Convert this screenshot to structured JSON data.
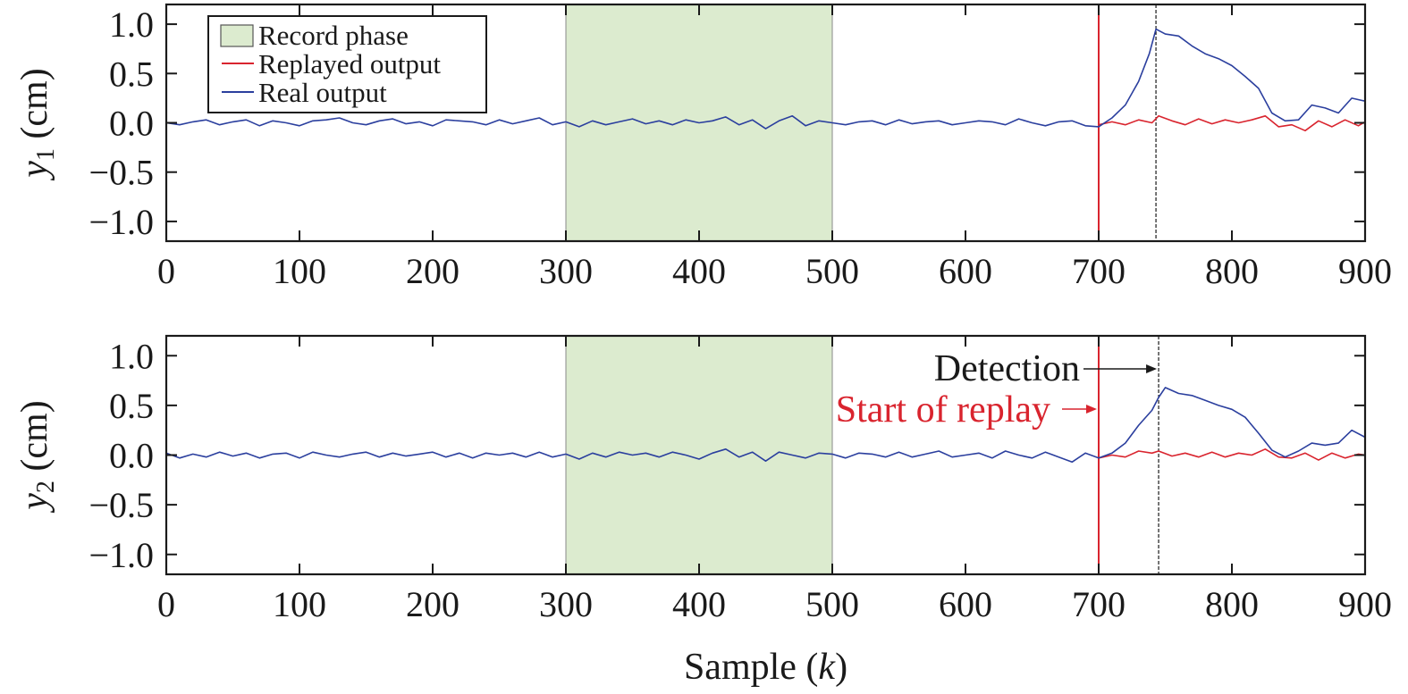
{
  "chart_data": [
    {
      "type": "line",
      "panel": "top",
      "ylabel_var": "y",
      "ylabel_sub": "1",
      "ylabel_unit": " (cm)",
      "xlabel": "",
      "xlim": [
        0,
        900
      ],
      "ylim": [
        -1.2,
        1.2
      ],
      "x_ticks": [
        0,
        100,
        200,
        300,
        400,
        500,
        600,
        700,
        800,
        900
      ],
      "y_ticks": [
        1.0,
        0.5,
        0.0,
        -0.5,
        -1.0
      ],
      "y_tick_labels": [
        "1.0",
        "0.5",
        "0.0",
        "−0.5",
        "−1.0"
      ],
      "record_phase": [
        300,
        500
      ],
      "replay_start": 700,
      "detection": 743,
      "legend": {
        "placement": "top-left",
        "entries": [
          "Record phase",
          "Replayed output",
          "Real output"
        ]
      },
      "series": [
        {
          "name": "Real output",
          "color": "#2b3f9e",
          "points": [
            [
              0,
              0
            ],
            [
              10,
              -0.02
            ],
            [
              20,
              0.01
            ],
            [
              30,
              0.03
            ],
            [
              40,
              -0.02
            ],
            [
              50,
              0.01
            ],
            [
              60,
              0.03
            ],
            [
              70,
              -0.03
            ],
            [
              80,
              0.02
            ],
            [
              90,
              0
            ],
            [
              100,
              -0.03
            ],
            [
              110,
              0.02
            ],
            [
              120,
              0.03
            ],
            [
              130,
              0.05
            ],
            [
              140,
              0
            ],
            [
              150,
              -0.02
            ],
            [
              160,
              0.02
            ],
            [
              170,
              0.04
            ],
            [
              180,
              -0.01
            ],
            [
              190,
              0.01
            ],
            [
              200,
              -0.03
            ],
            [
              210,
              0.03
            ],
            [
              220,
              0.02
            ],
            [
              230,
              0.01
            ],
            [
              240,
              -0.02
            ],
            [
              250,
              0.03
            ],
            [
              260,
              -0.01
            ],
            [
              270,
              0.02
            ],
            [
              280,
              0.05
            ],
            [
              290,
              -0.02
            ],
            [
              300,
              0.01
            ],
            [
              310,
              -0.04
            ],
            [
              320,
              0.02
            ],
            [
              330,
              -0.02
            ],
            [
              340,
              0.01
            ],
            [
              350,
              0.04
            ],
            [
              360,
              -0.01
            ],
            [
              370,
              0.02
            ],
            [
              380,
              -0.02
            ],
            [
              390,
              0.03
            ],
            [
              400,
              0
            ],
            [
              410,
              0.02
            ],
            [
              420,
              0.06
            ],
            [
              430,
              -0.02
            ],
            [
              440,
              0.03
            ],
            [
              450,
              -0.06
            ],
            [
              460,
              0.02
            ],
            [
              470,
              0.07
            ],
            [
              480,
              -0.03
            ],
            [
              490,
              0.02
            ],
            [
              500,
              0
            ],
            [
              510,
              -0.02
            ],
            [
              520,
              0.01
            ],
            [
              530,
              0.02
            ],
            [
              540,
              -0.02
            ],
            [
              550,
              0.03
            ],
            [
              560,
              -0.01
            ],
            [
              570,
              0.01
            ],
            [
              580,
              0.02
            ],
            [
              590,
              -0.02
            ],
            [
              600,
              0
            ],
            [
              610,
              0.02
            ],
            [
              620,
              0.01
            ],
            [
              630,
              -0.02
            ],
            [
              640,
              0.04
            ],
            [
              650,
              0
            ],
            [
              660,
              -0.03
            ],
            [
              670,
              0.01
            ],
            [
              680,
              0.02
            ],
            [
              690,
              -0.03
            ],
            [
              700,
              -0.04
            ],
            [
              710,
              0.05
            ],
            [
              720,
              0.18
            ],
            [
              730,
              0.42
            ],
            [
              738,
              0.7
            ],
            [
              743,
              0.95
            ],
            [
              750,
              0.9
            ],
            [
              760,
              0.88
            ],
            [
              770,
              0.78
            ],
            [
              780,
              0.7
            ],
            [
              790,
              0.65
            ],
            [
              800,
              0.58
            ],
            [
              810,
              0.47
            ],
            [
              820,
              0.35
            ],
            [
              830,
              0.1
            ],
            [
              840,
              0.02
            ],
            [
              850,
              0.03
            ],
            [
              860,
              0.18
            ],
            [
              870,
              0.15
            ],
            [
              880,
              0.1
            ],
            [
              890,
              0.25
            ],
            [
              900,
              0.22
            ]
          ]
        },
        {
          "name": "Replayed output",
          "color": "#d9242e",
          "points": [
            [
              700,
              -0.02
            ],
            [
              710,
              0.01
            ],
            [
              720,
              -0.02
            ],
            [
              730,
              0.03
            ],
            [
              740,
              0
            ],
            [
              745,
              0.07
            ],
            [
              755,
              0.02
            ],
            [
              765,
              -0.02
            ],
            [
              775,
              0.04
            ],
            [
              785,
              -0.01
            ],
            [
              795,
              0.03
            ],
            [
              805,
              0
            ],
            [
              815,
              0.03
            ],
            [
              825,
              0.07
            ],
            [
              835,
              -0.04
            ],
            [
              845,
              -0.02
            ],
            [
              855,
              -0.08
            ],
            [
              865,
              0.02
            ],
            [
              875,
              -0.04
            ],
            [
              885,
              0.03
            ],
            [
              895,
              -0.03
            ],
            [
              900,
              0.01
            ]
          ]
        }
      ]
    },
    {
      "type": "line",
      "panel": "bottom",
      "ylabel_var": "y",
      "ylabel_sub": "2",
      "ylabel_unit": " (cm)",
      "xlabel_pre": "Sample (",
      "xlabel_var": "k",
      "xlabel_post": ")",
      "xlim": [
        0,
        900
      ],
      "ylim": [
        -1.2,
        1.2
      ],
      "x_ticks": [
        0,
        100,
        200,
        300,
        400,
        500,
        600,
        700,
        800,
        900
      ],
      "y_ticks": [
        1.0,
        0.5,
        0.0,
        -0.5,
        -1.0
      ],
      "y_tick_labels": [
        "1.0",
        "0.5",
        "0.0",
        "−0.5",
        "−1.0"
      ],
      "record_phase": [
        300,
        500
      ],
      "replay_start": 700,
      "detection": 745,
      "annotations": [
        {
          "text": "Detection",
          "color": "#1a1a1a",
          "x": 745,
          "y": 0.85
        },
        {
          "text": "Start of replay",
          "color": "#d9242e",
          "x": 700,
          "y": 0.45
        }
      ],
      "series": [
        {
          "name": "Real output",
          "color": "#2b3f9e",
          "points": [
            [
              0,
              0.02
            ],
            [
              10,
              -0.03
            ],
            [
              20,
              0.01
            ],
            [
              30,
              -0.02
            ],
            [
              40,
              0.03
            ],
            [
              50,
              -0.01
            ],
            [
              60,
              0.02
            ],
            [
              70,
              -0.03
            ],
            [
              80,
              0.01
            ],
            [
              90,
              0.02
            ],
            [
              100,
              -0.03
            ],
            [
              110,
              0.03
            ],
            [
              120,
              0
            ],
            [
              130,
              -0.02
            ],
            [
              140,
              0.01
            ],
            [
              150,
              0.03
            ],
            [
              160,
              -0.02
            ],
            [
              170,
              0.02
            ],
            [
              180,
              -0.01
            ],
            [
              190,
              0.01
            ],
            [
              200,
              0.03
            ],
            [
              210,
              -0.02
            ],
            [
              220,
              0.02
            ],
            [
              230,
              -0.03
            ],
            [
              240,
              0.02
            ],
            [
              250,
              0
            ],
            [
              260,
              0.02
            ],
            [
              270,
              -0.02
            ],
            [
              280,
              0.03
            ],
            [
              290,
              -0.02
            ],
            [
              300,
              0.01
            ],
            [
              310,
              -0.04
            ],
            [
              320,
              0.02
            ],
            [
              330,
              -0.02
            ],
            [
              340,
              0.03
            ],
            [
              350,
              0
            ],
            [
              360,
              0.02
            ],
            [
              370,
              -0.02
            ],
            [
              380,
              0.03
            ],
            [
              390,
              0
            ],
            [
              400,
              -0.04
            ],
            [
              410,
              0.02
            ],
            [
              420,
              0.06
            ],
            [
              430,
              -0.02
            ],
            [
              440,
              0.03
            ],
            [
              450,
              -0.06
            ],
            [
              460,
              0.03
            ],
            [
              470,
              0
            ],
            [
              480,
              -0.03
            ],
            [
              490,
              0.02
            ],
            [
              500,
              0.01
            ],
            [
              510,
              -0.03
            ],
            [
              520,
              0.02
            ],
            [
              530,
              0.01
            ],
            [
              540,
              -0.02
            ],
            [
              550,
              0.03
            ],
            [
              560,
              -0.02
            ],
            [
              570,
              0.01
            ],
            [
              580,
              0.04
            ],
            [
              590,
              -0.02
            ],
            [
              600,
              0
            ],
            [
              610,
              0.02
            ],
            [
              620,
              -0.03
            ],
            [
              630,
              0.04
            ],
            [
              640,
              0
            ],
            [
              650,
              -0.03
            ],
            [
              660,
              0.03
            ],
            [
              670,
              -0.02
            ],
            [
              680,
              -0.07
            ],
            [
              690,
              0.02
            ],
            [
              700,
              -0.03
            ],
            [
              710,
              0.02
            ],
            [
              720,
              0.12
            ],
            [
              730,
              0.3
            ],
            [
              740,
              0.45
            ],
            [
              745,
              0.58
            ],
            [
              750,
              0.68
            ],
            [
              760,
              0.62
            ],
            [
              770,
              0.6
            ],
            [
              780,
              0.55
            ],
            [
              790,
              0.5
            ],
            [
              800,
              0.46
            ],
            [
              810,
              0.38
            ],
            [
              820,
              0.22
            ],
            [
              830,
              0.05
            ],
            [
              840,
              -0.02
            ],
            [
              850,
              0.04
            ],
            [
              860,
              0.12
            ],
            [
              870,
              0.1
            ],
            [
              880,
              0.12
            ],
            [
              890,
              0.25
            ],
            [
              900,
              0.18
            ]
          ]
        },
        {
          "name": "Replayed output",
          "color": "#d9242e",
          "points": [
            [
              700,
              -0.03
            ],
            [
              710,
              0
            ],
            [
              720,
              -0.02
            ],
            [
              730,
              0.04
            ],
            [
              740,
              0.02
            ],
            [
              745,
              0.04
            ],
            [
              755,
              -0.01
            ],
            [
              765,
              0.02
            ],
            [
              775,
              -0.02
            ],
            [
              785,
              0.03
            ],
            [
              795,
              -0.02
            ],
            [
              805,
              0.02
            ],
            [
              815,
              0
            ],
            [
              825,
              0.06
            ],
            [
              835,
              -0.02
            ],
            [
              845,
              -0.03
            ],
            [
              855,
              0.02
            ],
            [
              865,
              -0.05
            ],
            [
              875,
              0.02
            ],
            [
              885,
              -0.03
            ],
            [
              895,
              0.01
            ],
            [
              900,
              0
            ]
          ]
        }
      ]
    }
  ],
  "colors": {
    "record_fill": "#dcebcf",
    "record_edge": "#8a8a8a",
    "replay_line": "#d9242e",
    "detect_line": "#1a1a1a"
  }
}
